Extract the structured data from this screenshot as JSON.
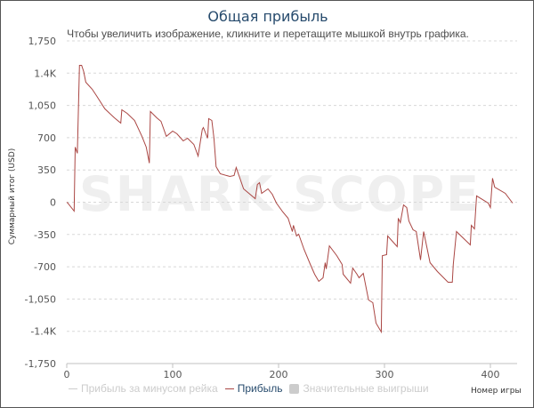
{
  "chart_data": {
    "type": "line",
    "title": "Общая прибыль",
    "subtitle": "Чтобы увеличить изображение, кликните и перетащите мышкой внутрь графика.",
    "xlabel": "Номер игры",
    "ylabel": "Суммарный итог (USD)",
    "xlim": [
      0,
      425
    ],
    "ylim": [
      -1750,
      1750
    ],
    "xticks": [
      0,
      100,
      200,
      300,
      400
    ],
    "yticks": [
      1750,
      1400,
      1050,
      700,
      350,
      0,
      -350,
      -700,
      -1050,
      -1400,
      -1750
    ],
    "ytick_labels": [
      "1,750",
      "1.4K",
      "1,050",
      "700",
      "350",
      "0",
      "-350",
      "-700",
      "-1,050",
      "-1.4K",
      "-1,750"
    ],
    "grid": true,
    "watermark": "SHARK SCOPE",
    "legend": {
      "position": "bottom",
      "items": [
        {
          "label": "Прибыль за минусом рейка",
          "color": "#cccccc",
          "active": false
        },
        {
          "label": "Прибыль",
          "color": "#aa4643",
          "active": true
        },
        {
          "label": "Значительные выигрыши",
          "color": "#cccccc",
          "active": false
        }
      ]
    },
    "series": [
      {
        "name": "Прибыль",
        "color": "#aa4643",
        "x": [
          0,
          1,
          7,
          8,
          10,
          12,
          14,
          16,
          18,
          24,
          28,
          36,
          45,
          50,
          51,
          52,
          57,
          64,
          71,
          75,
          78,
          79,
          85,
          89,
          94,
          100,
          104,
          110,
          114,
          120,
          124,
          128,
          129,
          133,
          134,
          137,
          139,
          141,
          145,
          154,
          158,
          160,
          167,
          178,
          180,
          182,
          184,
          190,
          194,
          198,
          204,
          209,
          213,
          214,
          217,
          219,
          224,
          230,
          234,
          238,
          242,
          244,
          245,
          248,
          255,
          260,
          261,
          268,
          270,
          274,
          276,
          280,
          285,
          289,
          292,
          297,
          298,
          302,
          303,
          312,
          313,
          315,
          318,
          321,
          323,
          327,
          330,
          334,
          337,
          343,
          350,
          360,
          364,
          365,
          368,
          381,
          382,
          385,
          387,
          398,
          400,
          402,
          404,
          414,
          421
        ],
        "y": [
          0,
          -10,
          -96,
          598,
          530,
          1485,
          1485,
          1418,
          1302,
          1225,
          1157,
          1013,
          916,
          868,
          858,
          1003,
          964,
          887,
          714,
          598,
          424,
          984,
          916,
          877,
          714,
          771,
          742,
          665,
          694,
          627,
          501,
          791,
          810,
          694,
          906,
          887,
          694,
          386,
          309,
          280,
          289,
          376,
          145,
          39,
          193,
          212,
          96,
          145,
          87,
          -10,
          -106,
          -174,
          -318,
          -251,
          -366,
          -347,
          -511,
          -675,
          -781,
          -858,
          -820,
          -656,
          -723,
          -473,
          -579,
          -675,
          -781,
          -878,
          -714,
          -781,
          -820,
          -771,
          -1061,
          -1090,
          -1311,
          -1408,
          -579,
          -569,
          -366,
          -482,
          -174,
          -222,
          -29,
          -58,
          -203,
          -299,
          -318,
          -627,
          -318,
          -656,
          -752,
          -868,
          -868,
          -675,
          -318,
          -463,
          -251,
          -289,
          68,
          -10,
          -58,
          260,
          164,
          96,
          -10
        ]
      }
    ]
  }
}
